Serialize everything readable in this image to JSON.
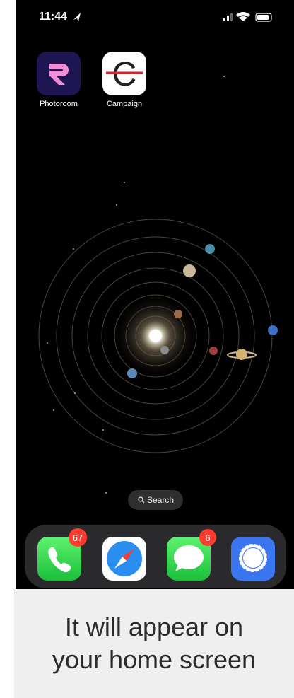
{
  "status_bar": {
    "time": "11:44"
  },
  "apps": [
    {
      "label": "Photoroom"
    },
    {
      "label": "Campaign"
    }
  ],
  "search": {
    "label": "Search"
  },
  "dock": {
    "badges": {
      "phone": "67",
      "messages": "6"
    }
  },
  "caption": {
    "lines": [
      "It will appear on",
      "your home screen"
    ]
  }
}
